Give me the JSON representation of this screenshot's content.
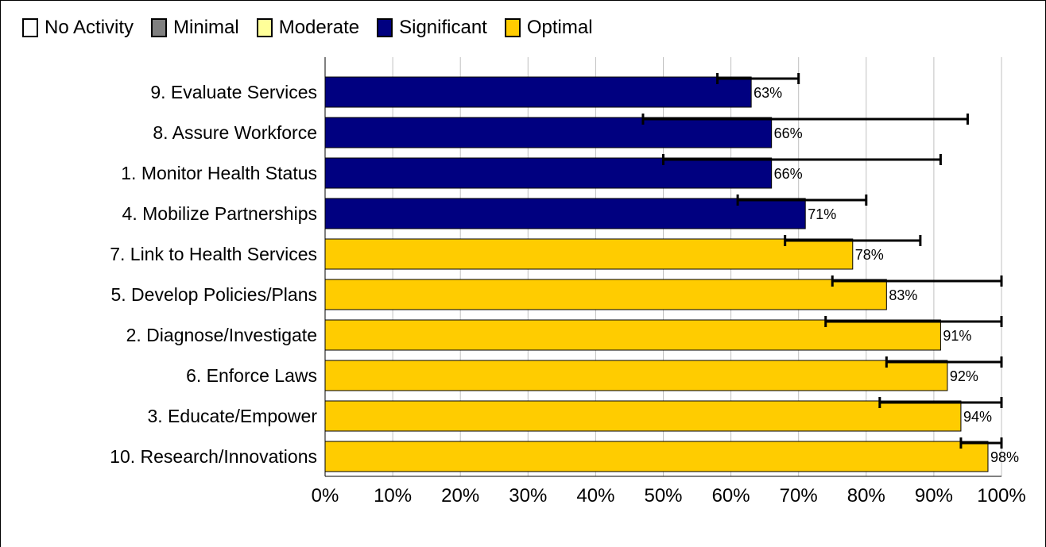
{
  "legend": [
    {
      "label": "No Activity",
      "color": "#ffffff"
    },
    {
      "label": "Minimal",
      "color": "#808080"
    },
    {
      "label": "Moderate",
      "color": "#ffff99"
    },
    {
      "label": "Significant",
      "color": "#000080"
    },
    {
      "label": "Optimal",
      "color": "#ffcc00"
    }
  ],
  "chart_data": {
    "type": "bar",
    "orientation": "horizontal",
    "categories": [
      "9.  Evaluate Services",
      "8.  Assure Workforce",
      "1.  Monitor Health Status",
      "4.  Mobilize Partnerships",
      "7.  Link to Health Services",
      "5.  Develop Policies/Plans",
      "2.  Diagnose/Investigate",
      "6.  Enforce Laws",
      "3.  Educate/Empower",
      "10.  Research/Innovations"
    ],
    "values": [
      63,
      66,
      66,
      71,
      78,
      83,
      91,
      92,
      94,
      98
    ],
    "value_labels": [
      "63%",
      "66%",
      "66%",
      "71%",
      "78%",
      "83%",
      "91%",
      "92%",
      "94%",
      "98%"
    ],
    "error_low": [
      58,
      47,
      50,
      61,
      68,
      75,
      74,
      83,
      82,
      94
    ],
    "error_high": [
      70,
      95,
      91,
      80,
      88,
      100,
      100,
      100,
      100,
      100
    ],
    "levels": [
      "Significant",
      "Significant",
      "Significant",
      "Significant",
      "Optimal",
      "Optimal",
      "Optimal",
      "Optimal",
      "Optimal",
      "Optimal"
    ],
    "xlim": [
      0,
      100
    ],
    "xticks": [
      "0%",
      "10%",
      "20%",
      "30%",
      "40%",
      "50%",
      "60%",
      "70%",
      "80%",
      "90%",
      "100%"
    ],
    "grid": true,
    "legend_position": "top-left",
    "colors": {
      "Significant": "#000080",
      "Optimal": "#ffcc00",
      "grid": "#c0c0c0",
      "errorbar": "#000000"
    }
  }
}
